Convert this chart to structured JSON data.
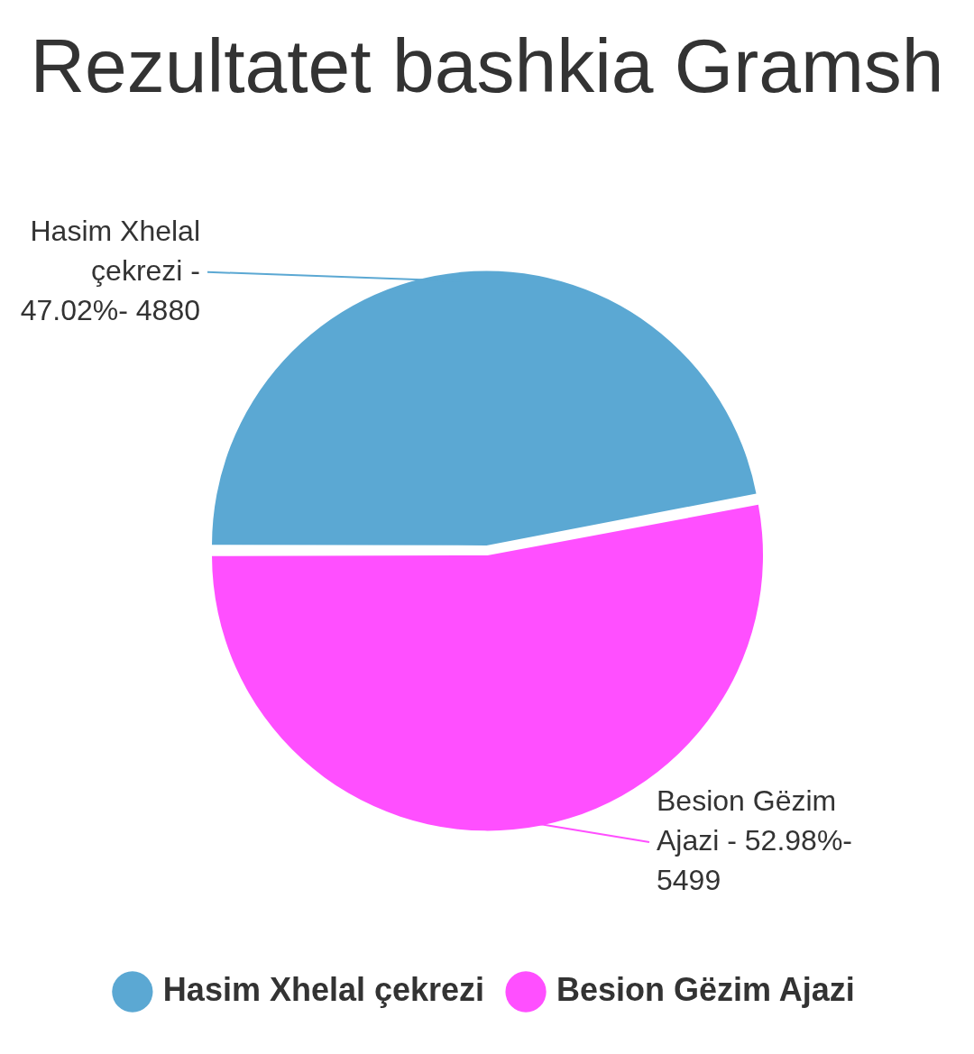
{
  "chart_data": {
    "type": "pie",
    "title": "Rezultatet bashkia Gramsh",
    "categories": [
      "Hasim Xhelal çekrezi",
      "Besion Gëzim Ajazi"
    ],
    "values": [
      47.02,
      52.98
    ],
    "colors": [
      "#5ba8d3",
      "#ff4fff"
    ],
    "annotations": [
      {
        "text": "Hasim Xhelal çekrezi - 47.02%- 4880",
        "x": "Hasim Xhelal çekrezi"
      },
      {
        "text": "Besion Gëzim Ajazi - 52.98%- 5499",
        "x": "Besion Gëzim Ajazi"
      }
    ],
    "legend": "bottom"
  }
}
